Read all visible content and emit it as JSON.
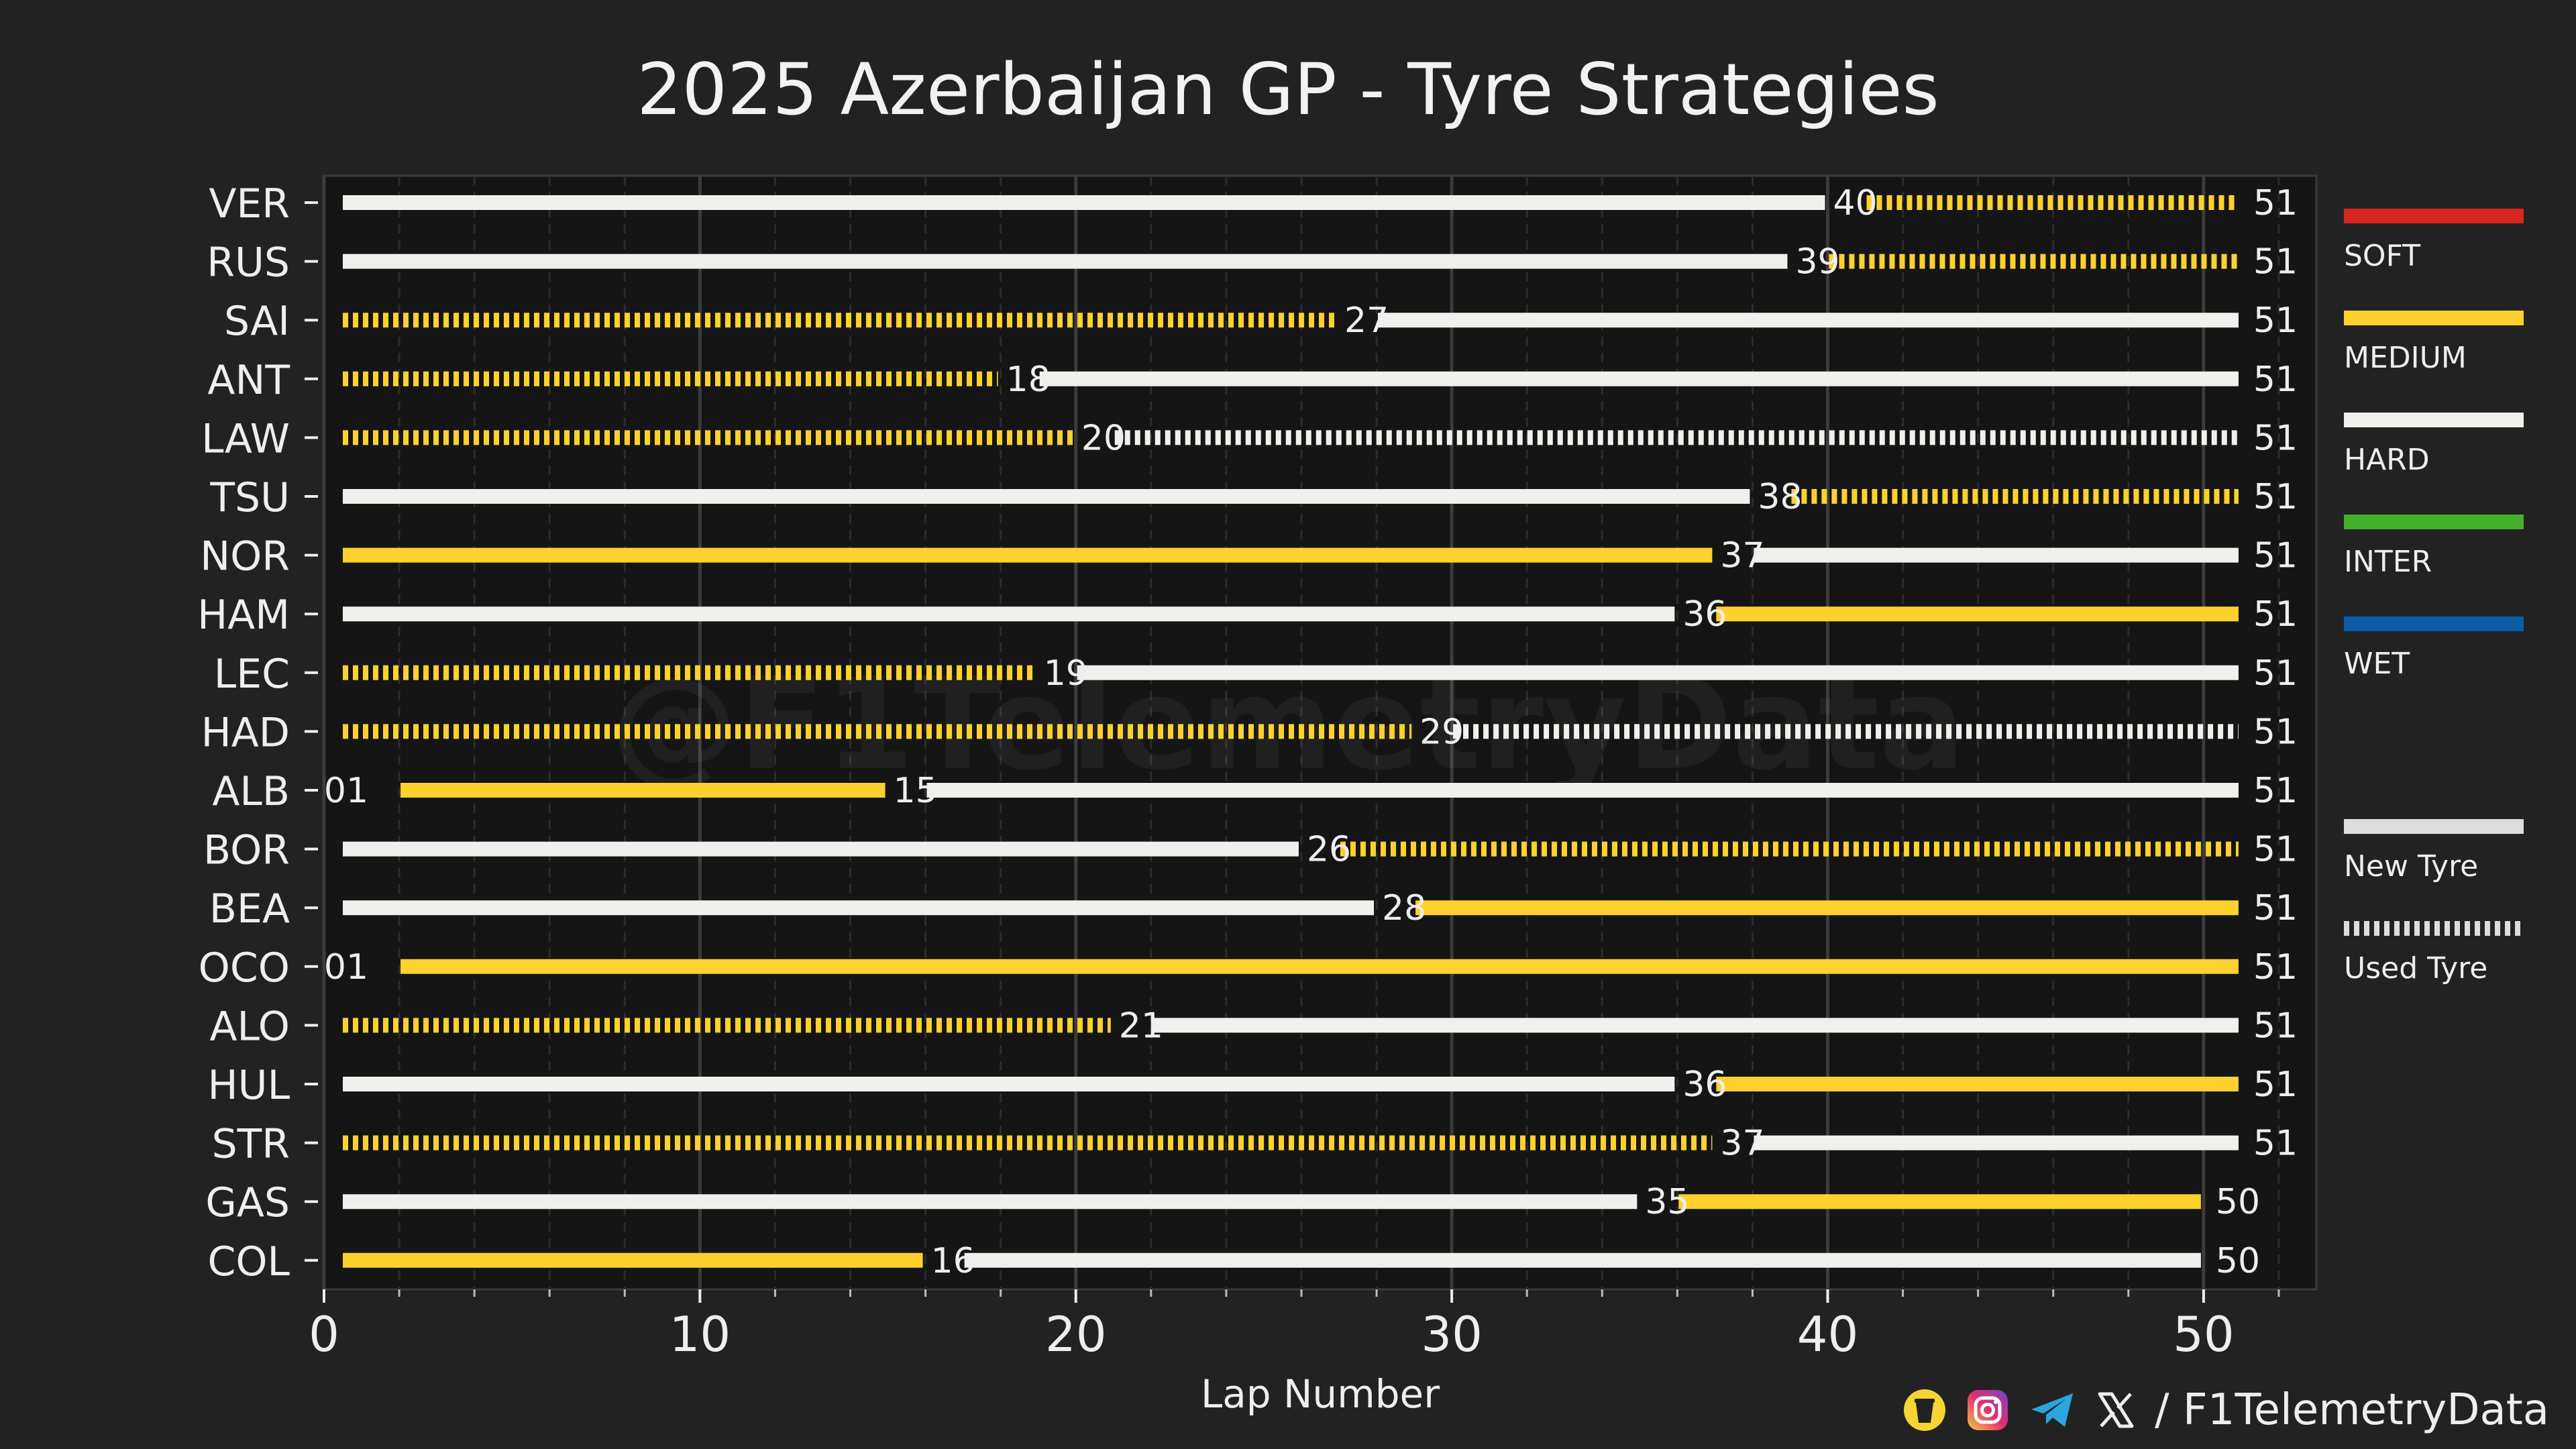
{
  "chart_data": {
    "type": "bar",
    "orientation": "horizontal-stacked-stints",
    "title": "2025 Azerbaijan GP - Tyre Strategies",
    "xlabel": "Lap Number",
    "ylabel": "",
    "xlim": [
      0,
      53
    ],
    "xticks": [
      0,
      10,
      20,
      30,
      40,
      50
    ],
    "grid": "vertical",
    "legend_position": "right",
    "compound_colors": {
      "SOFT": "#d7261e",
      "MEDIUM": "#fdd12e",
      "HARD": "#f0f0ec",
      "INTER": "#43b02a",
      "WET": "#0a5ca8"
    },
    "legend": [
      {
        "label": "SOFT",
        "color": "#d7261e",
        "style": "solid"
      },
      {
        "label": "MEDIUM",
        "color": "#fdd12e",
        "style": "solid"
      },
      {
        "label": "HARD",
        "color": "#f0f0ec",
        "style": "solid"
      },
      {
        "label": "INTER",
        "color": "#43b02a",
        "style": "solid"
      },
      {
        "label": "WET",
        "color": "#0a5ca8",
        "style": "solid"
      },
      {
        "label": "New Tyre",
        "color": "#dddddd",
        "style": "solid"
      },
      {
        "label": "Used Tyre",
        "color": "#dddddd",
        "style": "dashed"
      }
    ],
    "drivers": [
      {
        "code": "VER",
        "stints": [
          {
            "compound": "HARD",
            "used": false,
            "start": 0,
            "end": 40
          },
          {
            "compound": "MEDIUM",
            "used": true,
            "start": 40,
            "end": 51
          }
        ],
        "labels": [
          "40",
          "51"
        ]
      },
      {
        "code": "RUS",
        "stints": [
          {
            "compound": "HARD",
            "used": false,
            "start": 0,
            "end": 39
          },
          {
            "compound": "MEDIUM",
            "used": true,
            "start": 39,
            "end": 51
          }
        ],
        "labels": [
          "39",
          "51"
        ]
      },
      {
        "code": "SAI",
        "stints": [
          {
            "compound": "MEDIUM",
            "used": true,
            "start": 0,
            "end": 27
          },
          {
            "compound": "HARD",
            "used": false,
            "start": 27,
            "end": 51
          }
        ],
        "labels": [
          "27",
          "51"
        ]
      },
      {
        "code": "ANT",
        "stints": [
          {
            "compound": "MEDIUM",
            "used": true,
            "start": 0,
            "end": 18
          },
          {
            "compound": "HARD",
            "used": false,
            "start": 18,
            "end": 51
          }
        ],
        "labels": [
          "18",
          "51"
        ]
      },
      {
        "code": "LAW",
        "stints": [
          {
            "compound": "MEDIUM",
            "used": true,
            "start": 0,
            "end": 20
          },
          {
            "compound": "HARD",
            "used": true,
            "start": 20,
            "end": 51
          }
        ],
        "labels": [
          "20",
          "51"
        ]
      },
      {
        "code": "TSU",
        "stints": [
          {
            "compound": "HARD",
            "used": false,
            "start": 0,
            "end": 38
          },
          {
            "compound": "MEDIUM",
            "used": true,
            "start": 38,
            "end": 51
          }
        ],
        "labels": [
          "38",
          "51"
        ]
      },
      {
        "code": "NOR",
        "stints": [
          {
            "compound": "MEDIUM",
            "used": false,
            "start": 0,
            "end": 37
          },
          {
            "compound": "HARD",
            "used": false,
            "start": 37,
            "end": 51
          }
        ],
        "labels": [
          "37",
          "51"
        ]
      },
      {
        "code": "HAM",
        "stints": [
          {
            "compound": "HARD",
            "used": false,
            "start": 0,
            "end": 36
          },
          {
            "compound": "MEDIUM",
            "used": false,
            "start": 36,
            "end": 51
          }
        ],
        "labels": [
          "36",
          "51"
        ]
      },
      {
        "code": "LEC",
        "stints": [
          {
            "compound": "MEDIUM",
            "used": true,
            "start": 0,
            "end": 19
          },
          {
            "compound": "HARD",
            "used": false,
            "start": 19,
            "end": 51
          }
        ],
        "labels": [
          "19",
          "51"
        ]
      },
      {
        "code": "HAD",
        "stints": [
          {
            "compound": "MEDIUM",
            "used": true,
            "start": 0,
            "end": 29
          },
          {
            "compound": "HARD",
            "used": true,
            "start": 29,
            "end": 51
          }
        ],
        "labels": [
          "29",
          "51"
        ]
      },
      {
        "code": "ALB",
        "stints": [
          {
            "compound": "MEDIUM",
            "used": false,
            "start": 1,
            "end": 15
          },
          {
            "compound": "HARD",
            "used": false,
            "start": 15,
            "end": 51
          }
        ],
        "labels": [
          "01",
          "15",
          "51"
        ]
      },
      {
        "code": "BOR",
        "stints": [
          {
            "compound": "HARD",
            "used": false,
            "start": 0,
            "end": 26
          },
          {
            "compound": "MEDIUM",
            "used": true,
            "start": 26,
            "end": 51
          }
        ],
        "labels": [
          "26",
          "51"
        ]
      },
      {
        "code": "BEA",
        "stints": [
          {
            "compound": "HARD",
            "used": false,
            "start": 0,
            "end": 28
          },
          {
            "compound": "MEDIUM",
            "used": false,
            "start": 28,
            "end": 51
          }
        ],
        "labels": [
          "28",
          "51"
        ]
      },
      {
        "code": "OCO",
        "stints": [
          {
            "compound": "MEDIUM",
            "used": false,
            "start": 1,
            "end": 51
          }
        ],
        "labels": [
          "01",
          "51"
        ]
      },
      {
        "code": "ALO",
        "stints": [
          {
            "compound": "MEDIUM",
            "used": true,
            "start": 0,
            "end": 21
          },
          {
            "compound": "HARD",
            "used": false,
            "start": 21,
            "end": 51
          }
        ],
        "labels": [
          "21",
          "51"
        ]
      },
      {
        "code": "HUL",
        "stints": [
          {
            "compound": "HARD",
            "used": false,
            "start": 0,
            "end": 36
          },
          {
            "compound": "MEDIUM",
            "used": false,
            "start": 36,
            "end": 51
          }
        ],
        "labels": [
          "36",
          "51"
        ]
      },
      {
        "code": "STR",
        "stints": [
          {
            "compound": "MEDIUM",
            "used": true,
            "start": 0,
            "end": 37
          },
          {
            "compound": "HARD",
            "used": false,
            "start": 37,
            "end": 51
          }
        ],
        "labels": [
          "37",
          "51"
        ]
      },
      {
        "code": "GAS",
        "stints": [
          {
            "compound": "HARD",
            "used": false,
            "start": 0,
            "end": 35
          },
          {
            "compound": "MEDIUM",
            "used": false,
            "start": 35,
            "end": 50
          }
        ],
        "labels": [
          "35",
          "50"
        ]
      },
      {
        "code": "COL",
        "stints": [
          {
            "compound": "MEDIUM",
            "used": false,
            "start": 0,
            "end": 16
          },
          {
            "compound": "HARD",
            "used": false,
            "start": 16,
            "end": 50
          }
        ],
        "labels": [
          "16",
          "50"
        ]
      }
    ]
  },
  "watermark": "@F1TelemetryData",
  "footer": {
    "handle": "/ F1TelemetryData",
    "icons": [
      "buymeacoffee-icon",
      "instagram-icon",
      "telegram-icon",
      "x-icon"
    ]
  }
}
